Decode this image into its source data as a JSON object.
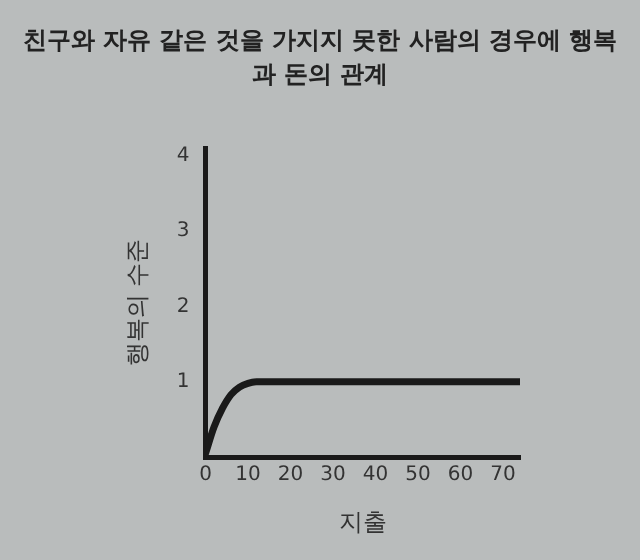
{
  "chart_data": {
    "type": "line",
    "title": "친구와 자유 같은 것을 가지지 못한 사람의 경우에 행복과 돈의 관계",
    "xlabel": "지출",
    "ylabel": "행복의 수준",
    "x": [
      0,
      2,
      4,
      6,
      8,
      10,
      12,
      74
    ],
    "series": [
      {
        "color": "#1a1a1a",
        "values": [
          0.05,
          0.4,
          0.65,
          0.83,
          0.93,
          0.98,
          1,
          1
        ]
      }
    ],
    "xlim": [
      0,
      74
    ],
    "xticks": [
      0,
      10,
      20,
      30,
      40,
      50,
      60,
      70
    ],
    "ylim": [
      0,
      4.1
    ],
    "yticks": [
      1,
      2,
      3,
      4
    ],
    "grid": false,
    "legend": false,
    "marker": "none",
    "line_style": "solid"
  }
}
